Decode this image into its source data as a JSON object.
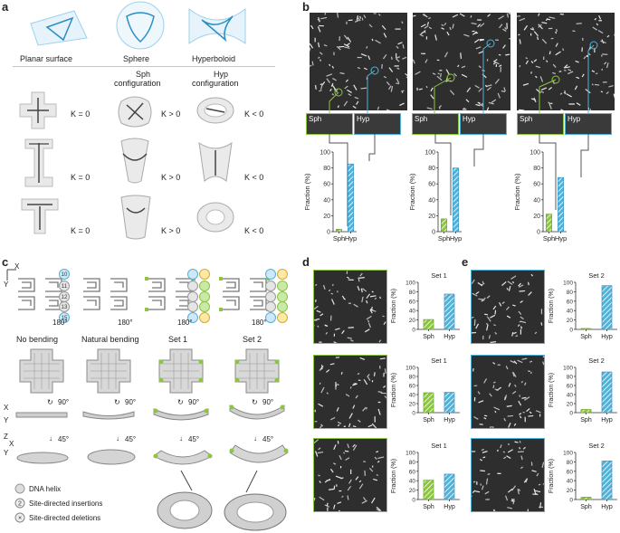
{
  "panel_a": {
    "letter": "a",
    "surfaces": [
      "Planar surface",
      "Sphere",
      "Hyperboloid"
    ],
    "col_headers": [
      "Sph\nconfiguration",
      "Hyp\nconfiguration"
    ],
    "sph_header_line1": "Sph",
    "sph_header_line2": "configuration",
    "hyp_header_line1": "Hyp",
    "hyp_header_line2": "configuration",
    "rows": [
      {
        "planar": "K = 0",
        "sph": "K > 0",
        "hyp": "K < 0"
      },
      {
        "planar": "K = 0",
        "sph": "K > 0",
        "hyp": "K < 0"
      },
      {
        "planar": "K = 0",
        "sph": "K > 0",
        "hyp": "K < 0"
      }
    ],
    "k1": "k",
    "k2": "k"
  },
  "panel_b": {
    "letter": "b",
    "thumb_sph": "Sph",
    "thumb_hyp": "Hyp",
    "colors": {
      "sph": "#8cc63f",
      "hyp": "#4fb3d9"
    }
  },
  "panel_c": {
    "letter": "c",
    "axis_x": "X",
    "axis_y": "Y",
    "axis_z": "Z",
    "angle_180": "180°",
    "angle_90": "90°",
    "angle_45": "45°",
    "headers": [
      "No bending",
      "Natural bending",
      "Set 1",
      "Set 2"
    ],
    "helix_labels": [
      "10",
      "11",
      "12",
      "13",
      "15"
    ],
    "legend": [
      {
        "icon": "",
        "text": "DNA helix"
      },
      {
        "icon": "2",
        "text": "Site-directed insertions"
      },
      {
        "icon": "×",
        "text": "Site-directed deletions"
      }
    ]
  },
  "panel_d": {
    "letter": "d",
    "set": "Set 1"
  },
  "panel_e": {
    "letter": "e",
    "set": "Set 2"
  },
  "chart_data": [
    {
      "type": "bar",
      "panel": "b",
      "categories": [
        "Sph",
        "Hyp"
      ],
      "values": [
        3,
        85
      ],
      "ylabel": "Fraction (%)",
      "ylim": [
        0,
        100
      ],
      "yticks": [
        0,
        20,
        40,
        60,
        80,
        100
      ]
    },
    {
      "type": "bar",
      "panel": "b",
      "categories": [
        "Sph",
        "Hyp"
      ],
      "values": [
        16,
        80
      ],
      "ylabel": "Fraction (%)",
      "ylim": [
        0,
        100
      ],
      "yticks": [
        0,
        20,
        40,
        60,
        80,
        100
      ]
    },
    {
      "type": "bar",
      "panel": "b",
      "categories": [
        "Sph",
        "Hyp"
      ],
      "values": [
        22,
        68
      ],
      "ylabel": "Fraction (%)",
      "ylim": [
        0,
        100
      ],
      "yticks": [
        0,
        20,
        40,
        60,
        80,
        100
      ]
    },
    {
      "type": "bar",
      "panel": "d",
      "title": "Set 1",
      "categories": [
        "Sph",
        "Hyp"
      ],
      "values": [
        21,
        75
      ],
      "ylabel": "Fraction (%)",
      "ylim": [
        0,
        100
      ],
      "yticks": [
        0,
        20,
        40,
        60,
        80,
        100
      ]
    },
    {
      "type": "bar",
      "panel": "d",
      "title": "Set 1",
      "categories": [
        "Sph",
        "Hyp"
      ],
      "values": [
        44,
        45
      ],
      "ylabel": "Fraction (%)",
      "ylim": [
        0,
        100
      ],
      "yticks": [
        0,
        20,
        40,
        60,
        80,
        100
      ]
    },
    {
      "type": "bar",
      "panel": "d",
      "title": "Set 1",
      "categories": [
        "Sph",
        "Hyp"
      ],
      "values": [
        41,
        54
      ],
      "ylabel": "Fraction (%)",
      "ylim": [
        0,
        100
      ],
      "yticks": [
        0,
        20,
        40,
        60,
        80,
        100
      ]
    },
    {
      "type": "bar",
      "panel": "e",
      "title": "Set 2",
      "categories": [
        "Sph",
        "Hyp"
      ],
      "values": [
        2,
        93
      ],
      "ylabel": "Fraction (%)",
      "ylim": [
        0,
        100
      ],
      "yticks": [
        0,
        20,
        40,
        60,
        80,
        100
      ]
    },
    {
      "type": "bar",
      "panel": "e",
      "title": "Set 2",
      "categories": [
        "Sph",
        "Hyp"
      ],
      "values": [
        7,
        90
      ],
      "ylabel": "Fraction (%)",
      "ylim": [
        0,
        100
      ],
      "yticks": [
        0,
        20,
        40,
        60,
        80,
        100
      ]
    },
    {
      "type": "bar",
      "panel": "e",
      "title": "Set 2",
      "categories": [
        "Sph",
        "Hyp"
      ],
      "values": [
        5,
        82
      ],
      "ylabel": "Fraction (%)",
      "ylim": [
        0,
        100
      ],
      "yticks": [
        0,
        20,
        40,
        60,
        80,
        100
      ]
    }
  ]
}
